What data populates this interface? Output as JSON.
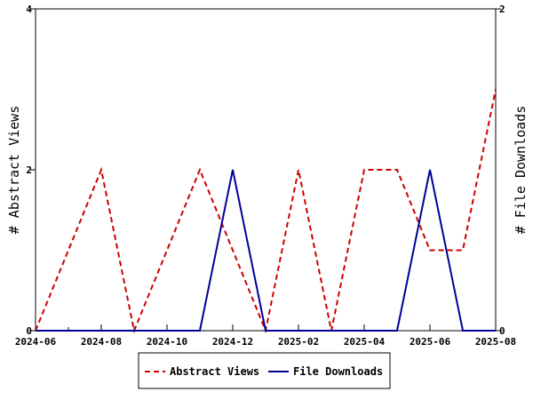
{
  "chart_data": {
    "type": "line",
    "x_categories": [
      "2024-06",
      "2024-07",
      "2024-08",
      "2024-09",
      "2024-10",
      "2024-11",
      "2024-12",
      "2025-01",
      "2025-02",
      "2025-03",
      "2025-04",
      "2025-05",
      "2025-06",
      "2025-07",
      "2025-08"
    ],
    "x_tick_labels": [
      "2024-06",
      "2024-08",
      "2024-10",
      "2024-12",
      "2025-02",
      "2025-04",
      "2025-06",
      "2025-08"
    ],
    "y_left": {
      "label": "# Abstract Views",
      "ticks": [
        "0",
        "2",
        "4"
      ],
      "ylim": [
        0,
        4
      ]
    },
    "y_right": {
      "label": "# File Downloads",
      "ticks": [
        "0",
        "2"
      ],
      "ylim": [
        0,
        2
      ]
    },
    "series": [
      {
        "name": "Abstract Views",
        "axis": "left",
        "color": "#cc0000",
        "style": "dashed",
        "values": [
          0,
          1,
          2,
          0,
          1,
          2,
          1,
          0,
          2,
          0,
          2,
          2,
          1,
          1,
          3
        ]
      },
      {
        "name": "File Downloads",
        "axis": "right",
        "color": "#000099",
        "style": "solid",
        "values": [
          0,
          0,
          0,
          0,
          0,
          0,
          1,
          0,
          0,
          0,
          0,
          0,
          1,
          0,
          0
        ]
      }
    ],
    "grid": false,
    "legend_position": "bottom"
  }
}
